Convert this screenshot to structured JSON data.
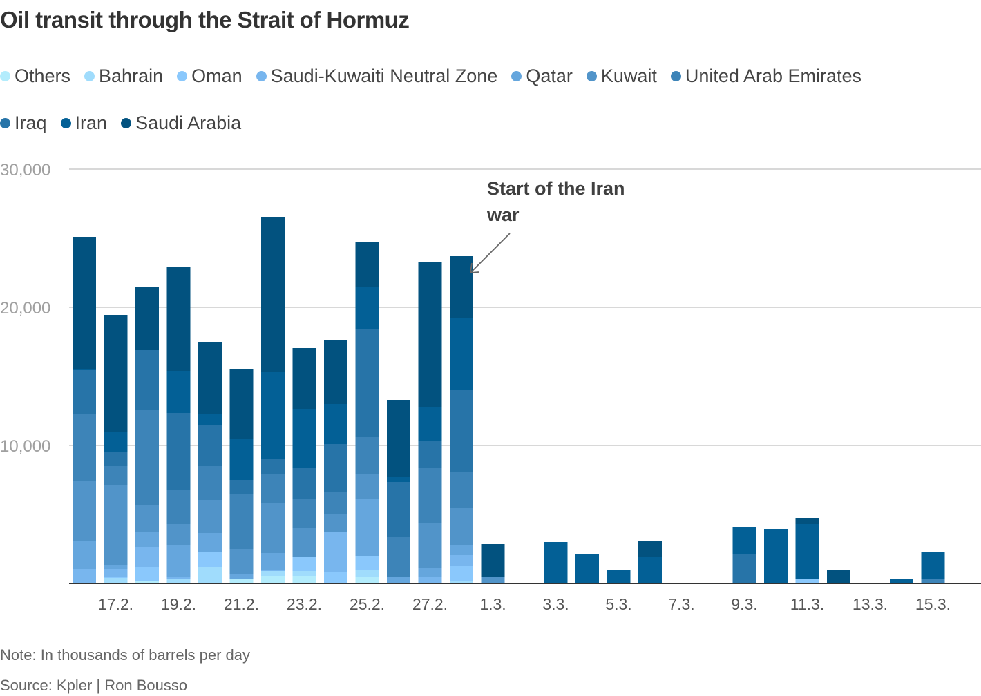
{
  "chart_data": {
    "type": "bar",
    "stacked": true,
    "title": "Oil transit through the Strait of Hormuz",
    "annotation": "Start of the Iran war",
    "note": "Note: In thousands of barrels per day",
    "source": "Source: Kpler | Ron Bousso",
    "ylim": [
      0,
      30000
    ],
    "yticks": [
      10000,
      20000,
      30000
    ],
    "ytick_labels": [
      "10,000",
      "20,000",
      "30,000"
    ],
    "grid": true,
    "legend_position": "top",
    "categories": [
      "16.2.",
      "17.2.",
      "18.2.",
      "19.2.",
      "20.2.",
      "21.2.",
      "22.2.",
      "23.2.",
      "24.2.",
      "25.2.",
      "26.2.",
      "27.2.",
      "28.2.",
      "1.3.",
      "2.3.",
      "3.3.",
      "4.3.",
      "5.3.",
      "6.3.",
      "7.3.",
      "8.3.",
      "9.3.",
      "10.3.",
      "11.3.",
      "12.3.",
      "13.3.",
      "14.3.",
      "15.3."
    ],
    "xtick_labels": [
      "17.2.",
      "19.2.",
      "21.2.",
      "23.2.",
      "25.2.",
      "27.2.",
      "1.3.",
      "3.3.",
      "5.3.",
      "7.3.",
      "9.3.",
      "11.3.",
      "13.3.",
      "15.3."
    ],
    "series": [
      {
        "name": "Others",
        "color": "#b3ecfc",
        "values": [
          0,
          0,
          150,
          0,
          0,
          300,
          550,
          550,
          0,
          500,
          0,
          0,
          0,
          0,
          0,
          0,
          0,
          0,
          0,
          0,
          0,
          0,
          0,
          0,
          0,
          0,
          0,
          0
        ]
      },
      {
        "name": "Bahrain",
        "color": "#a0dcfc",
        "values": [
          0,
          400,
          0,
          300,
          1200,
          0,
          350,
          350,
          0,
          500,
          0,
          0,
          200,
          0,
          0,
          0,
          0,
          0,
          0,
          0,
          0,
          0,
          0,
          0,
          0,
          0,
          0,
          0
        ]
      },
      {
        "name": "Oman",
        "color": "#8ac8fc",
        "values": [
          0,
          100,
          1050,
          0,
          1050,
          0,
          0,
          1000,
          800,
          1000,
          0,
          0,
          1050,
          0,
          0,
          0,
          0,
          0,
          0,
          0,
          0,
          0,
          0,
          300,
          0,
          0,
          0,
          0
        ]
      },
      {
        "name": "Saudi-Kuwaiti Neutral Zone",
        "color": "#78b6ee",
        "values": [
          1050,
          550,
          1450,
          150,
          0,
          0,
          50,
          50,
          2950,
          0,
          0,
          450,
          800,
          0,
          0,
          0,
          0,
          0,
          0,
          0,
          0,
          0,
          0,
          0,
          0,
          0,
          0,
          0
        ]
      },
      {
        "name": "Qatar",
        "color": "#65a6dd",
        "values": [
          2050,
          300,
          1050,
          2300,
          1400,
          350,
          1250,
          0,
          0,
          4100,
          500,
          650,
          700,
          0,
          0,
          0,
          0,
          0,
          0,
          0,
          0,
          0,
          0,
          0,
          0,
          0,
          0,
          0
        ]
      },
      {
        "name": "Kuwait",
        "color": "#5194c9",
        "values": [
          4300,
          5800,
          1950,
          1550,
          2400,
          1850,
          3600,
          2050,
          1300,
          1800,
          0,
          3250,
          2750,
          500,
          0,
          0,
          0,
          0,
          0,
          0,
          0,
          0,
          0,
          0,
          0,
          0,
          0,
          0
        ]
      },
      {
        "name": "United Arab Emirates",
        "color": "#3d84b8",
        "values": [
          4850,
          1350,
          6900,
          2450,
          2450,
          4000,
          2100,
          2150,
          1550,
          2700,
          2850,
          4000,
          2550,
          0,
          0,
          0,
          0,
          0,
          0,
          0,
          0,
          0,
          0,
          0,
          0,
          0,
          0,
          300
        ]
      },
      {
        "name": "Iraq",
        "color": "#2774a8",
        "values": [
          3200,
          1000,
          4350,
          5600,
          2950,
          1000,
          1100,
          2200,
          3500,
          7800,
          4000,
          2000,
          5950,
          0,
          0,
          0,
          0,
          0,
          0,
          0,
          0,
          2100,
          0,
          0,
          0,
          0,
          0,
          0
        ]
      },
      {
        "name": "Iran",
        "color": "#036096",
        "values": [
          50,
          1450,
          0,
          3050,
          800,
          2950,
          6300,
          4300,
          2900,
          3100,
          350,
          2400,
          5200,
          0,
          0,
          3000,
          2100,
          1000,
          1950,
          0,
          0,
          2000,
          3950,
          4000,
          0,
          0,
          300,
          2000
        ]
      },
      {
        "name": "Saudi Arabia",
        "color": "#02527f",
        "values": [
          9600,
          8500,
          4600,
          7500,
          5200,
          5050,
          11250,
          4400,
          4600,
          3200,
          5600,
          10500,
          4500,
          2350,
          50,
          0,
          0,
          0,
          1100,
          0,
          0,
          0,
          0,
          450,
          1000,
          0,
          0,
          0
        ]
      }
    ]
  }
}
